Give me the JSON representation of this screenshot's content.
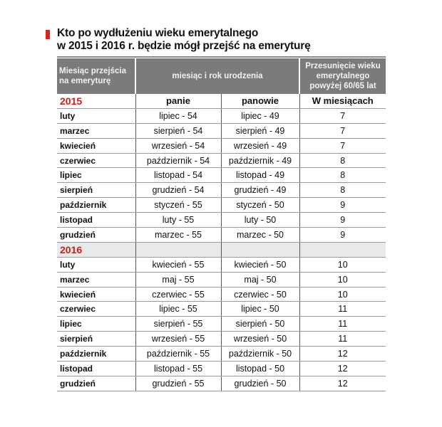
{
  "title": {
    "line1": "Kto po wydłużeniu wieku emerytalnego",
    "line2": "w 2015 i 2016 r. będzie mógł przejść na emeryturę",
    "accent_color": "#d7261e"
  },
  "headers": {
    "col1": "Miesiąc przejścia na emeryturę",
    "col2": "miesiąc i rok urodzenia",
    "col3": "Przesunięcie wieku emerytalnego powyżej 60/65 lat"
  },
  "subheaders": {
    "women": "panie",
    "men": "panowie",
    "months": "W miesiącach"
  },
  "sections": [
    {
      "year": "2015",
      "rows": [
        {
          "month": "luty",
          "women": "lipiec - 54",
          "men": "lipiec - 49",
          "shift": "7"
        },
        {
          "month": "marzec",
          "women": "sierpień - 54",
          "men": "sierpień - 49",
          "shift": "7"
        },
        {
          "month": "kwiecień",
          "women": "wrzesień - 54",
          "men": "wrzesień - 49",
          "shift": "7"
        },
        {
          "month": "czerwiec",
          "women": "październik - 54",
          "men": "październik - 49",
          "shift": "8"
        },
        {
          "month": "lipiec",
          "women": "listopad - 54",
          "men": "listopad - 49",
          "shift": "8"
        },
        {
          "month": "sierpień",
          "women": "grudzień - 54",
          "men": "grudzień - 49",
          "shift": "8"
        },
        {
          "month": "październik",
          "women": "styczeń - 55",
          "men": "styczeń - 50",
          "shift": "9"
        },
        {
          "month": "listopad",
          "women": "luty - 55",
          "men": "luty - 50",
          "shift": "9"
        },
        {
          "month": "grudzień",
          "women": "marzec - 55",
          "men": "marzec - 50",
          "shift": "9"
        }
      ]
    },
    {
      "year": "2016",
      "rows": [
        {
          "month": "luty",
          "women": "kwiecień - 55",
          "men": "kwiecień - 50",
          "shift": "10"
        },
        {
          "month": "marzec",
          "women": "maj - 55",
          "men": "maj - 50",
          "shift": "10"
        },
        {
          "month": "kwiecień",
          "women": "czerwiec - 55",
          "men": "czerwiec - 50",
          "shift": "10"
        },
        {
          "month": "czerwiec",
          "women": "lipiec - 55",
          "men": "lipiec - 50",
          "shift": "11"
        },
        {
          "month": "lipiec",
          "women": "sierpień - 55",
          "men": "sierpień - 50",
          "shift": "11"
        },
        {
          "month": "sierpień",
          "women": "wrzesień - 55",
          "men": "wrzesień - 50",
          "shift": "11"
        },
        {
          "month": "październik",
          "women": "październik - 55",
          "men": "październik - 50",
          "shift": "12"
        },
        {
          "month": "listopad",
          "women": "listopad - 55",
          "men": "listopad - 50",
          "shift": "12"
        },
        {
          "month": "grudzień",
          "women": "grudzień - 55",
          "men": "grudzień - 50",
          "shift": "12"
        }
      ]
    }
  ]
}
